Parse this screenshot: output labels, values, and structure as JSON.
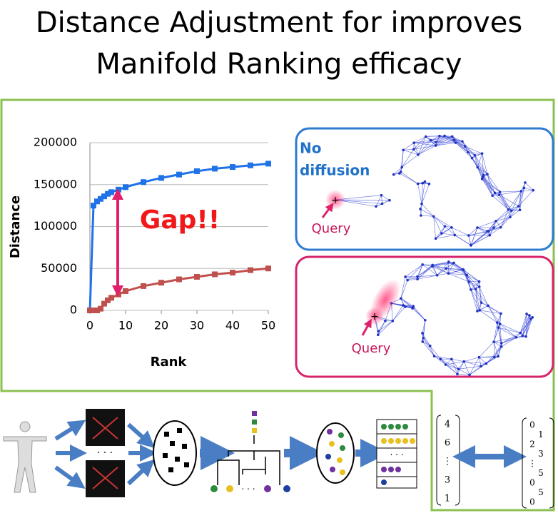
{
  "title": [
    "Distance Adjustment for improves",
    "Manifold Ranking efficacy"
  ],
  "chart_data": {
    "type": "line",
    "x_label": "Rank",
    "y_label": "Distance",
    "x": [
      0,
      1,
      2,
      3,
      4,
      5,
      6,
      8,
      10,
      15,
      20,
      25,
      30,
      35,
      40,
      45,
      50
    ],
    "series": [
      {
        "color": "#1f72e8",
        "values": [
          0,
          125000,
          130000,
          133000,
          136000,
          139000,
          141000,
          144000,
          147000,
          153000,
          158000,
          162000,
          166000,
          169000,
          171000,
          173000,
          175000
        ]
      },
      {
        "color": "#c0504d",
        "values": [
          0,
          0,
          0,
          2000,
          8000,
          12000,
          15000,
          19000,
          23000,
          29000,
          33000,
          37000,
          40000,
          43000,
          45000,
          48000,
          50000
        ]
      }
    ],
    "xlim": [
      0,
      50
    ],
    "ylim": [
      0,
      200000
    ],
    "xticks": [
      0,
      10,
      20,
      30,
      40,
      50
    ],
    "yticks": [
      0,
      50000,
      100000,
      150000,
      200000
    ],
    "grid": true,
    "annotation": "Gap!!"
  },
  "panels": [
    {
      "label_lines": [
        "No",
        "diffusion"
      ],
      "query": "Query"
    },
    {
      "query": "Query"
    }
  ],
  "pipeline": {
    "dots": "· · ·",
    "left_vector": [
      "4",
      "6",
      "⋮",
      "3",
      "1"
    ],
    "right_vector": [
      "0",
      "1",
      "2",
      "3",
      "⋮",
      "5",
      "0",
      "5",
      "0"
    ]
  }
}
